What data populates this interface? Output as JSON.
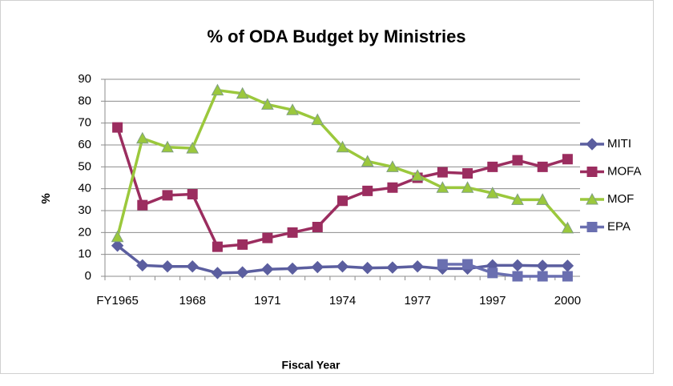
{
  "chart_data": {
    "type": "line",
    "title": "% of ODA Budget by Ministries",
    "x_label": "Fiscal Year",
    "y_label": "%",
    "categories": [
      "FY1965",
      null,
      null,
      "1968",
      null,
      null,
      "1971",
      null,
      null,
      "1974",
      null,
      null,
      "1977",
      null,
      null,
      "1997",
      null,
      null,
      "2000"
    ],
    "series": [
      {
        "name": "MITI",
        "color": "#5b5e9f",
        "marker": "diamond",
        "values": [
          14,
          5,
          4.5,
          4.5,
          1.5,
          1.8,
          3.2,
          3.5,
          4.2,
          4.5,
          3.8,
          4,
          4.5,
          3.5,
          3.5,
          5,
          5,
          4.8,
          4.8
        ]
      },
      {
        "name": "MOFA",
        "color": "#9b2d5f",
        "marker": "square",
        "values": [
          68,
          32.5,
          37,
          37.5,
          13.5,
          14.5,
          17.5,
          20,
          22.5,
          34.5,
          39,
          40.5,
          45,
          47.5,
          47,
          50,
          53,
          50,
          53.5
        ]
      },
      {
        "name": "MOF",
        "color": "#9bc83c",
        "marker": "triangle",
        "values": [
          18,
          63,
          59,
          58.5,
          85,
          83.5,
          78.5,
          76,
          71.5,
          59,
          52.5,
          50,
          46,
          40.5,
          40.5,
          38,
          35,
          35,
          22
        ]
      },
      {
        "name": "EPA",
        "color": "#6a6fb0",
        "marker": "square",
        "values": [
          null,
          null,
          null,
          null,
          null,
          null,
          null,
          null,
          null,
          null,
          null,
          null,
          null,
          5.5,
          5.5,
          1.5,
          0,
          0,
          0
        ]
      }
    ],
    "ylim": [
      0,
      90
    ],
    "yticks": [
      0,
      10,
      20,
      30,
      40,
      50,
      60,
      70,
      80,
      90
    ],
    "grid": true,
    "legend": "right"
  }
}
